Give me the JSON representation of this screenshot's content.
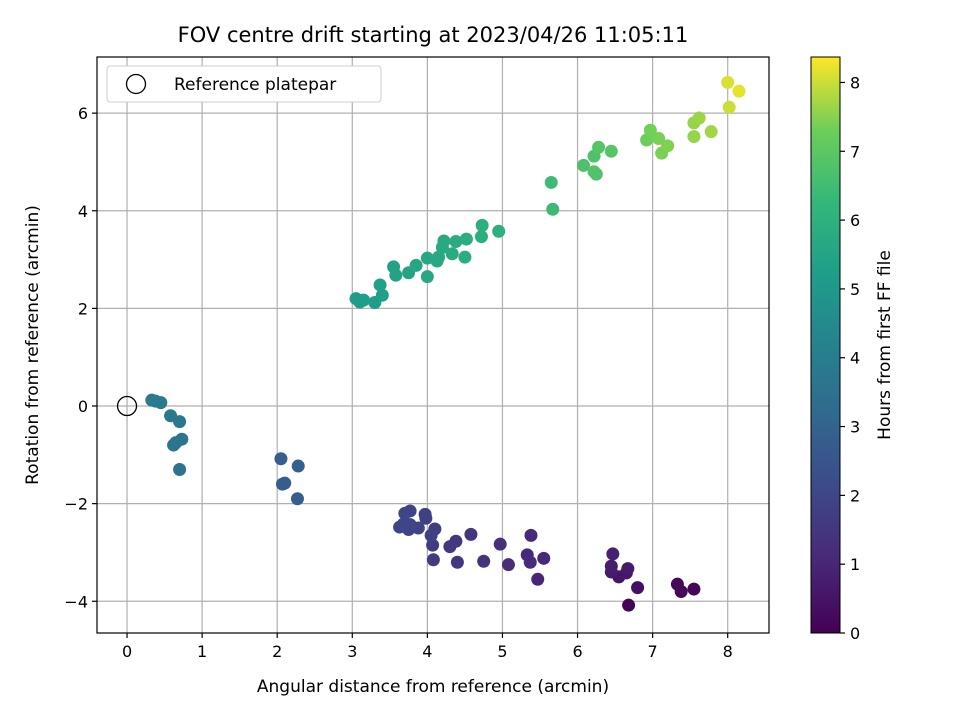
{
  "chart_data": {
    "type": "scatter",
    "title": "FOV centre drift starting at 2023/04/26 11:05:11",
    "xlabel": "Angular distance from reference (arcmin)",
    "ylabel": "Rotation from reference (arcmin)",
    "xlim": [
      -0.4,
      8.55
    ],
    "ylim": [
      -4.65,
      7.15
    ],
    "xticks": [
      0,
      1,
      2,
      3,
      4,
      5,
      6,
      7,
      8
    ],
    "yticks": [
      -4,
      -2,
      0,
      2,
      4,
      6
    ],
    "grid": true,
    "legend": {
      "placement": "top-left",
      "entries": [
        "Reference platepar"
      ]
    },
    "reference_point": {
      "x": 0,
      "y": 0
    },
    "colorbar": {
      "label": "Hours from first FF file",
      "range": [
        0,
        8.37
      ],
      "ticks": [
        0,
        1,
        2,
        3,
        4,
        5,
        6,
        7,
        8
      ],
      "colormap": "viridis"
    },
    "points": [
      {
        "x": 6.68,
        "y": -4.08,
        "c": 0.1
      },
      {
        "x": 7.38,
        "y": -3.8,
        "c": 0.15
      },
      {
        "x": 7.55,
        "y": -3.75,
        "c": 0.15
      },
      {
        "x": 7.33,
        "y": -3.65,
        "c": 0.2
      },
      {
        "x": 6.8,
        "y": -3.72,
        "c": 0.4
      },
      {
        "x": 6.55,
        "y": -3.5,
        "c": 0.5
      },
      {
        "x": 6.65,
        "y": -3.42,
        "c": 0.6
      },
      {
        "x": 6.45,
        "y": -3.4,
        "c": 0.7
      },
      {
        "x": 6.67,
        "y": -3.33,
        "c": 0.7
      },
      {
        "x": 6.45,
        "y": -3.28,
        "c": 0.75
      },
      {
        "x": 6.47,
        "y": -3.03,
        "c": 0.85
      },
      {
        "x": 5.47,
        "y": -3.55,
        "c": 1.0
      },
      {
        "x": 5.55,
        "y": -3.12,
        "c": 1.05
      },
      {
        "x": 5.37,
        "y": -3.2,
        "c": 1.1
      },
      {
        "x": 5.33,
        "y": -3.05,
        "c": 1.1
      },
      {
        "x": 5.38,
        "y": -2.65,
        "c": 1.15
      },
      {
        "x": 5.08,
        "y": -3.25,
        "c": 1.2
      },
      {
        "x": 4.97,
        "y": -2.83,
        "c": 1.3
      },
      {
        "x": 4.75,
        "y": -3.18,
        "c": 1.35
      },
      {
        "x": 4.58,
        "y": -2.63,
        "c": 1.45
      },
      {
        "x": 4.4,
        "y": -3.2,
        "c": 1.5
      },
      {
        "x": 4.38,
        "y": -2.77,
        "c": 1.55
      },
      {
        "x": 4.3,
        "y": -2.88,
        "c": 1.55
      },
      {
        "x": 4.08,
        "y": -3.15,
        "c": 1.65
      },
      {
        "x": 4.07,
        "y": -2.85,
        "c": 1.7
      },
      {
        "x": 4.1,
        "y": -2.52,
        "c": 1.75
      },
      {
        "x": 4.05,
        "y": -2.65,
        "c": 1.8
      },
      {
        "x": 3.97,
        "y": -2.22,
        "c": 1.8
      },
      {
        "x": 3.98,
        "y": -2.3,
        "c": 1.8
      },
      {
        "x": 3.88,
        "y": -2.5,
        "c": 1.9
      },
      {
        "x": 3.75,
        "y": -2.53,
        "c": 1.95
      },
      {
        "x": 3.77,
        "y": -2.43,
        "c": 1.95
      },
      {
        "x": 3.63,
        "y": -2.48,
        "c": 2.0
      },
      {
        "x": 3.68,
        "y": -2.42,
        "c": 2.0
      },
      {
        "x": 3.7,
        "y": -2.2,
        "c": 2.0
      },
      {
        "x": 3.77,
        "y": -2.15,
        "c": 2.0
      },
      {
        "x": 2.27,
        "y": -1.9,
        "c": 2.8
      },
      {
        "x": 2.07,
        "y": -1.6,
        "c": 2.8
      },
      {
        "x": 2.1,
        "y": -1.58,
        "c": 2.8
      },
      {
        "x": 2.05,
        "y": -1.08,
        "c": 2.85
      },
      {
        "x": 2.28,
        "y": -1.23,
        "c": 2.85
      },
      {
        "x": 0.7,
        "y": -1.3,
        "c": 3.6
      },
      {
        "x": 0.62,
        "y": -0.8,
        "c": 3.65
      },
      {
        "x": 0.65,
        "y": -0.75,
        "c": 3.65
      },
      {
        "x": 0.73,
        "y": -0.68,
        "c": 3.7
      },
      {
        "x": 0.7,
        "y": -0.32,
        "c": 3.75
      },
      {
        "x": 0.58,
        "y": -0.2,
        "c": 3.8
      },
      {
        "x": 0.45,
        "y": 0.07,
        "c": 3.85
      },
      {
        "x": 0.38,
        "y": 0.1,
        "c": 3.85
      },
      {
        "x": 0.33,
        "y": 0.12,
        "c": 3.9
      },
      {
        "x": 3.3,
        "y": 2.12,
        "c": 5.2
      },
      {
        "x": 3.1,
        "y": 2.13,
        "c": 5.2
      },
      {
        "x": 3.05,
        "y": 2.2,
        "c": 5.2
      },
      {
        "x": 3.15,
        "y": 2.17,
        "c": 5.25
      },
      {
        "x": 3.4,
        "y": 2.27,
        "c": 5.3
      },
      {
        "x": 3.58,
        "y": 2.68,
        "c": 5.4
      },
      {
        "x": 3.55,
        "y": 2.85,
        "c": 5.4
      },
      {
        "x": 3.37,
        "y": 2.48,
        "c": 5.35
      },
      {
        "x": 3.75,
        "y": 2.73,
        "c": 5.5
      },
      {
        "x": 3.85,
        "y": 2.88,
        "c": 5.55
      },
      {
        "x": 4.0,
        "y": 2.65,
        "c": 5.6
      },
      {
        "x": 4.0,
        "y": 3.03,
        "c": 5.6
      },
      {
        "x": 4.13,
        "y": 2.97,
        "c": 5.65
      },
      {
        "x": 4.15,
        "y": 3.05,
        "c": 5.65
      },
      {
        "x": 4.2,
        "y": 3.25,
        "c": 5.7
      },
      {
        "x": 4.22,
        "y": 3.38,
        "c": 5.7
      },
      {
        "x": 4.33,
        "y": 3.12,
        "c": 5.75
      },
      {
        "x": 4.38,
        "y": 3.37,
        "c": 5.8
      },
      {
        "x": 4.5,
        "y": 3.05,
        "c": 5.85
      },
      {
        "x": 4.52,
        "y": 3.42,
        "c": 5.85
      },
      {
        "x": 4.72,
        "y": 3.47,
        "c": 5.9
      },
      {
        "x": 4.73,
        "y": 3.7,
        "c": 5.9
      },
      {
        "x": 4.95,
        "y": 3.58,
        "c": 5.95
      },
      {
        "x": 5.67,
        "y": 4.03,
        "c": 6.4
      },
      {
        "x": 5.65,
        "y": 4.58,
        "c": 6.45
      },
      {
        "x": 6.08,
        "y": 4.93,
        "c": 6.7
      },
      {
        "x": 6.22,
        "y": 5.12,
        "c": 6.75
      },
      {
        "x": 6.22,
        "y": 4.8,
        "c": 6.8
      },
      {
        "x": 6.25,
        "y": 4.75,
        "c": 6.8
      },
      {
        "x": 6.28,
        "y": 5.3,
        "c": 6.85
      },
      {
        "x": 6.45,
        "y": 5.22,
        "c": 6.9
      },
      {
        "x": 6.92,
        "y": 5.45,
        "c": 7.3
      },
      {
        "x": 6.97,
        "y": 5.65,
        "c": 7.35
      },
      {
        "x": 7.08,
        "y": 5.48,
        "c": 7.4
      },
      {
        "x": 7.12,
        "y": 5.18,
        "c": 7.4
      },
      {
        "x": 7.2,
        "y": 5.33,
        "c": 7.45
      },
      {
        "x": 7.55,
        "y": 5.52,
        "c": 7.6
      },
      {
        "x": 7.55,
        "y": 5.8,
        "c": 7.6
      },
      {
        "x": 7.62,
        "y": 5.9,
        "c": 7.65
      },
      {
        "x": 7.78,
        "y": 5.62,
        "c": 7.7
      },
      {
        "x": 8.02,
        "y": 6.12,
        "c": 8.0
      },
      {
        "x": 8.0,
        "y": 6.63,
        "c": 8.1
      },
      {
        "x": 8.15,
        "y": 6.45,
        "c": 8.2
      }
    ]
  }
}
